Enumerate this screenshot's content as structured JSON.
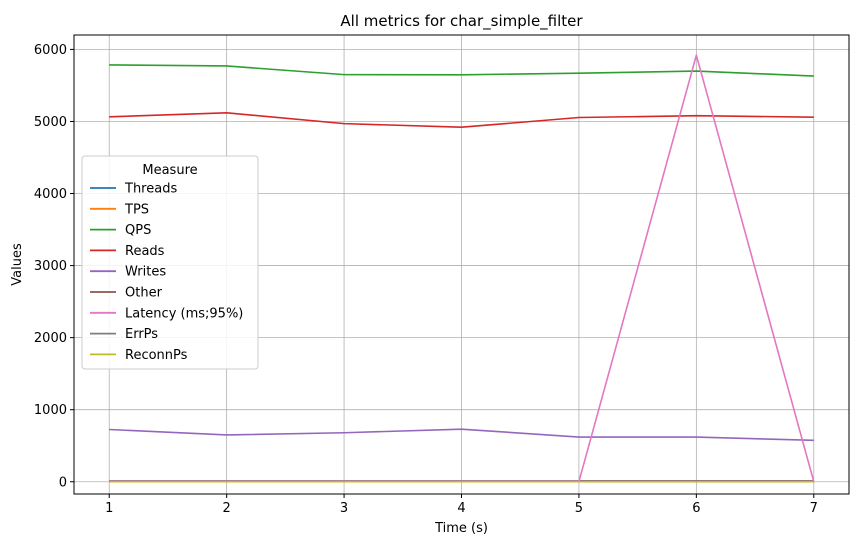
{
  "chart_data": {
    "type": "line",
    "title": "All metrics for char_simple_filter",
    "xlabel": "Time (s)",
    "ylabel": "Values",
    "x": [
      1,
      2,
      3,
      4,
      5,
      6,
      7
    ],
    "xlim": [
      0.7,
      7.3
    ],
    "ylim": [
      -170,
      6200
    ],
    "xticks": [
      1,
      2,
      3,
      4,
      5,
      6,
      7
    ],
    "yticks": [
      0,
      1000,
      2000,
      3000,
      4000,
      5000,
      6000
    ],
    "grid": true,
    "legend": {
      "title": "Measure",
      "placement": "center-left"
    },
    "series": [
      {
        "name": "Threads",
        "color": "#1f77b4",
        "values": [
          8,
          8,
          8,
          8,
          8,
          8,
          8
        ]
      },
      {
        "name": "TPS",
        "color": "#ff7f0e",
        "values": [
          5,
          4,
          3,
          3,
          3,
          4,
          4
        ]
      },
      {
        "name": "QPS",
        "color": "#2ca02c",
        "values": [
          5785,
          5770,
          5650,
          5648,
          5670,
          5700,
          5630
        ]
      },
      {
        "name": "Reads",
        "color": "#d62728",
        "values": [
          5065,
          5120,
          4970,
          4920,
          5055,
          5080,
          5060
        ]
      },
      {
        "name": "Writes",
        "color": "#9467bd",
        "values": [
          725,
          650,
          680,
          730,
          620,
          620,
          575
        ]
      },
      {
        "name": "Other",
        "color": "#8c564b",
        "values": [
          10,
          10,
          10,
          10,
          10,
          10,
          10
        ]
      },
      {
        "name": "Latency (ms;95%)",
        "color": "#e377c2",
        "values": [
          3,
          3,
          3,
          3,
          3,
          5920,
          3
        ]
      },
      {
        "name": "ErrPs",
        "color": "#7f7f7f",
        "values": [
          0,
          0,
          0,
          0,
          0,
          0,
          0
        ]
      },
      {
        "name": "ReconnPs",
        "color": "#bcbd22",
        "values": [
          0,
          0,
          0,
          0,
          0,
          0,
          0
        ]
      }
    ]
  }
}
